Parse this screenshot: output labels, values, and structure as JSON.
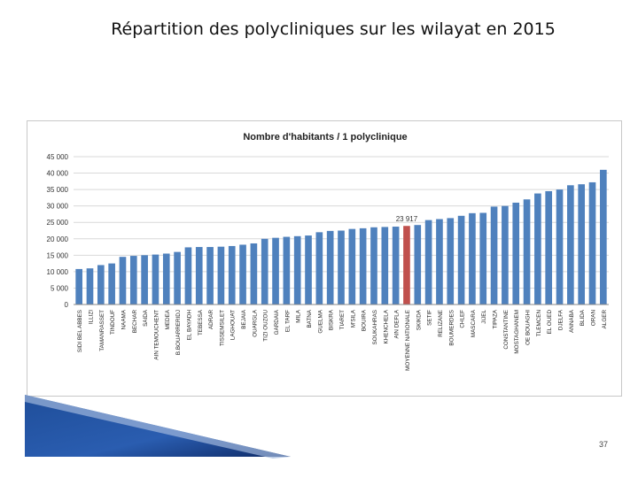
{
  "slide": {
    "title": "Répartition des polycliniques sur les wilayat en 2015",
    "page_number": "37"
  },
  "colors": {
    "bar": "#4f81bd",
    "highlight_bar": "#c0504d",
    "grid": "#d9d9d9",
    "axis_text": "#333333"
  },
  "chart_data": {
    "type": "bar",
    "title": "Nombre d'habitants  / 1 polyclinique",
    "xlabel": "",
    "ylabel": "",
    "ylim": [
      0,
      45000
    ],
    "yticks": [
      "0",
      "5 000",
      "10 000",
      "15 000",
      "20 000",
      "25 000",
      "30 000",
      "35 000",
      "40 000",
      "45 000"
    ],
    "ytick_values": [
      0,
      5000,
      10000,
      15000,
      20000,
      25000,
      30000,
      35000,
      40000,
      45000
    ],
    "grid": true,
    "legend": "none",
    "highlight_category": "MOYENNE NATIONALE",
    "data_label": "23 917",
    "categories": [
      "SIDI BEL ABBES",
      "ILLIZI",
      "TAMANRASSET",
      "TINDOUF",
      "NAAMA",
      "BECHAR",
      "SAIDA",
      "AIN TEMOUCHENT",
      "MEDEA",
      "B.BOUARRERIDJ",
      "EL BAYADH",
      "TEBESSA",
      "ADRAR",
      "TISSEMSILET",
      "LAGHOUAT",
      "BEJAIA",
      "OUARGLA",
      "TIZI OUZOU",
      "GARDAIA",
      "EL TARF",
      "MILA",
      "BATNA",
      "GUELMA",
      "BISKRA",
      "TIARET",
      "M'SILA",
      "BOUIRA",
      "SOUKAHRAS",
      "KHENCHELA",
      "AIN DEFLA",
      "MOYENNE NATIONALE",
      "SKIKDA",
      "SETIF",
      "RELIZANE",
      "BOUMERDES",
      "CHLEF",
      "MASCARA",
      "JIJEL",
      "TIPAZA",
      "CONSTANTINE",
      "MOSTAGHANEM",
      "OE BOUAGHI",
      "TLEMCEN",
      "EL OUED",
      "DJELFA",
      "ANNABA",
      "BLIDA",
      "ORAN",
      "ALGER"
    ],
    "values": [
      10800,
      11000,
      12000,
      12500,
      14500,
      14800,
      15000,
      15200,
      15500,
      16000,
      17400,
      17500,
      17500,
      17600,
      17800,
      18200,
      18600,
      20000,
      20300,
      20600,
      20800,
      21000,
      22000,
      22400,
      22500,
      23000,
      23200,
      23500,
      23600,
      23700,
      23917,
      24200,
      25700,
      26000,
      26300,
      27000,
      27800,
      27900,
      29800,
      30000,
      31000,
      32000,
      33800,
      34500,
      35000,
      36300,
      36600,
      37200,
      41000
    ]
  }
}
